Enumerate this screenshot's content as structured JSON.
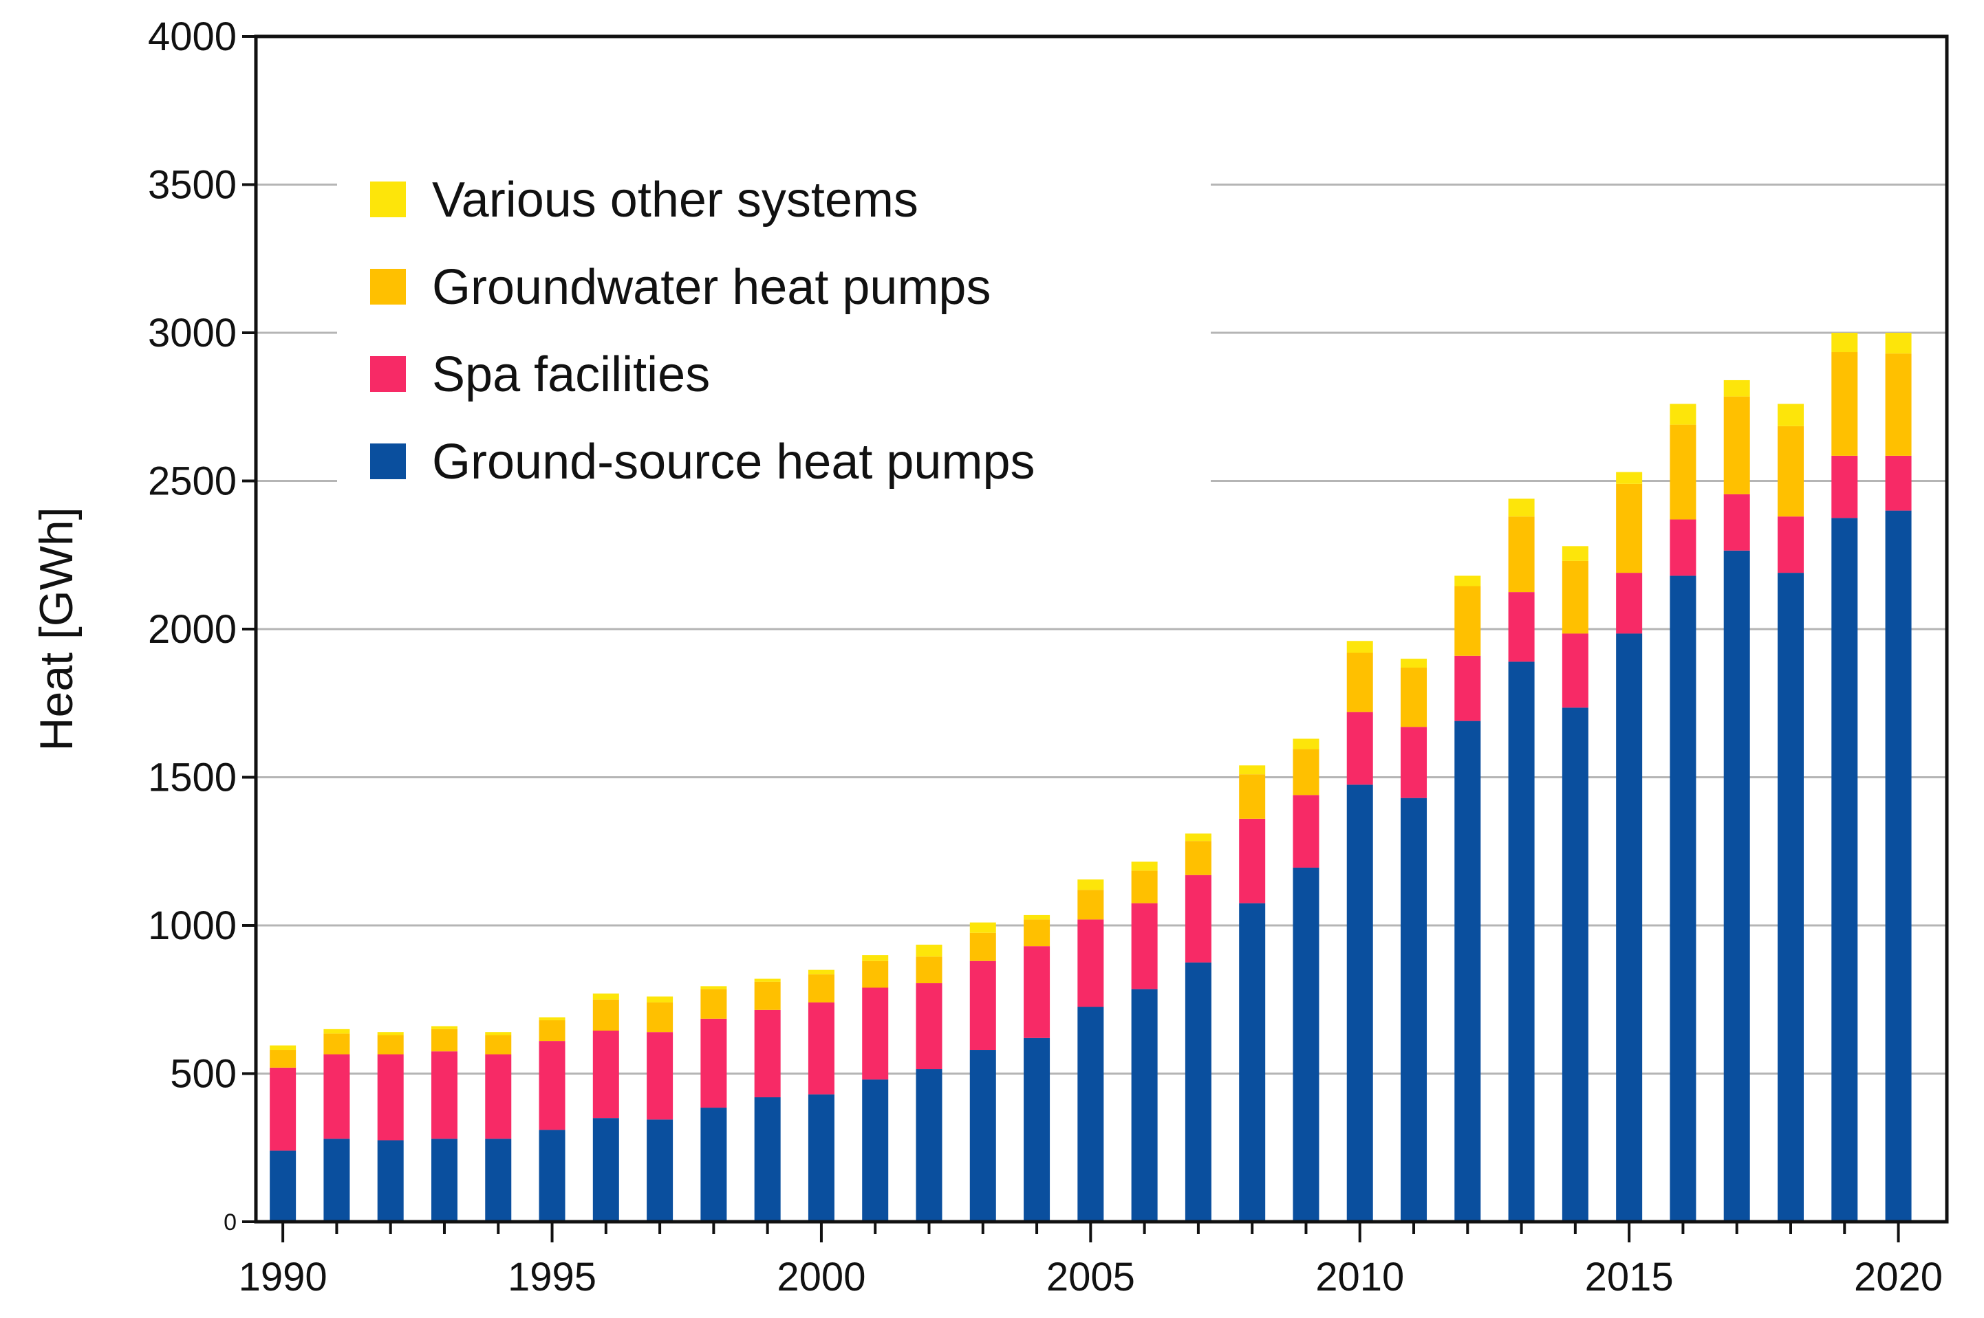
{
  "chart_data": {
    "type": "bar",
    "stacked": true,
    "title": "",
    "xlabel": "",
    "ylabel": "Heat [GWh]",
    "ylim": [
      0,
      4000
    ],
    "yticks": [
      0,
      500,
      1000,
      1500,
      2000,
      2500,
      3000,
      3500,
      4000
    ],
    "xlim": [
      1989.5,
      2020.9
    ],
    "xticks_labeled": [
      1990,
      1995,
      2000,
      2005,
      2010,
      2015,
      2020
    ],
    "grid": true,
    "legend_position": "top-left",
    "categories": [
      1990,
      1991,
      1992,
      1993,
      1994,
      1995,
      1996,
      1997,
      1998,
      1999,
      2000,
      2001,
      2002,
      2003,
      2004,
      2005,
      2006,
      2007,
      2008,
      2009,
      2010,
      2011,
      2012,
      2013,
      2014,
      2015,
      2016,
      2017,
      2018,
      2019,
      2020
    ],
    "series": [
      {
        "name": "Ground-source heat pumps",
        "color": "#0a4f9e",
        "values": [
          240,
          280,
          275,
          280,
          280,
          310,
          350,
          345,
          385,
          420,
          430,
          480,
          515,
          580,
          620,
          725,
          785,
          875,
          1075,
          1195,
          1475,
          1430,
          1690,
          1890,
          1735,
          1985,
          2180,
          2265,
          2190,
          2375,
          2400
        ]
      },
      {
        "name": "Spa facilities",
        "color": "#f72a66",
        "values": [
          280,
          285,
          290,
          295,
          285,
          300,
          295,
          295,
          300,
          295,
          310,
          310,
          290,
          300,
          310,
          295,
          290,
          295,
          285,
          245,
          245,
          240,
          220,
          235,
          250,
          205,
          190,
          190,
          190,
          210,
          185
        ]
      },
      {
        "name": "Groundwater heat pumps",
        "color": "#ffc000",
        "values": [
          60,
          70,
          65,
          75,
          65,
          70,
          105,
          100,
          100,
          95,
          95,
          90,
          90,
          95,
          90,
          100,
          110,
          115,
          150,
          155,
          200,
          200,
          235,
          255,
          245,
          300,
          320,
          330,
          305,
          350,
          345
        ]
      },
      {
        "name": "Various other systems",
        "color": "#fde50a",
        "values": [
          15,
          15,
          10,
          10,
          10,
          10,
          20,
          20,
          10,
          10,
          15,
          20,
          40,
          35,
          15,
          35,
          30,
          25,
          30,
          35,
          40,
          30,
          35,
          60,
          50,
          40,
          70,
          55,
          75,
          65,
          70
        ]
      }
    ],
    "legend_order": [
      "Various other systems",
      "Groundwater heat pumps",
      "Spa facilities",
      "Ground-source heat pumps"
    ]
  }
}
